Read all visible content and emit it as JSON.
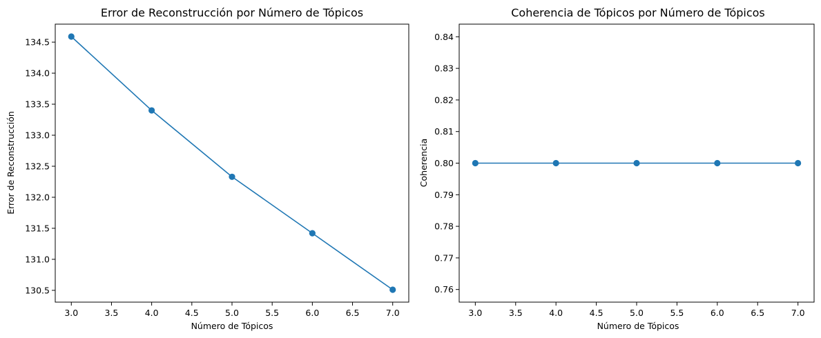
{
  "chart_data": [
    {
      "type": "line",
      "title": "Error de Reconstrucción por Número de Tópicos",
      "xlabel": "Número de Tópicos",
      "ylabel": "Error de Reconstrucción",
      "x": [
        3,
        4,
        5,
        6,
        7
      ],
      "series": [
        {
          "values": [
            134.59,
            133.4,
            132.33,
            131.42,
            130.51
          ],
          "color": "#1f77b4",
          "marker": "circle"
        }
      ],
      "xlim": [
        2.8,
        7.2
      ],
      "ylim": [
        130.31,
        134.79
      ],
      "xticks": [
        3.0,
        3.5,
        4.0,
        4.5,
        5.0,
        5.5,
        6.0,
        6.5,
        7.0
      ],
      "xtick_labels": [
        "3.0",
        "3.5",
        "4.0",
        "4.5",
        "5.0",
        "5.5",
        "6.0",
        "6.5",
        "7.0"
      ],
      "yticks": [
        130.5,
        131.0,
        131.5,
        132.0,
        132.5,
        133.0,
        133.5,
        134.0,
        134.5
      ],
      "ytick_labels": [
        "130.5",
        "131.0",
        "131.5",
        "132.0",
        "132.5",
        "133.0",
        "133.5",
        "134.0",
        "134.5"
      ],
      "grid": false
    },
    {
      "type": "line",
      "title": "Coherencia de Tópicos por Número de Tópicos",
      "xlabel": "Número de Tópicos",
      "ylabel": "Coherencia",
      "x": [
        3,
        4,
        5,
        6,
        7
      ],
      "series": [
        {
          "values": [
            0.8,
            0.8,
            0.8,
            0.8,
            0.8
          ],
          "color": "#1f77b4",
          "marker": "circle"
        }
      ],
      "xlim": [
        2.8,
        7.2
      ],
      "ylim": [
        0.756,
        0.844
      ],
      "xticks": [
        3.0,
        3.5,
        4.0,
        4.5,
        5.0,
        5.5,
        6.0,
        6.5,
        7.0
      ],
      "xtick_labels": [
        "3.0",
        "3.5",
        "4.0",
        "4.5",
        "5.0",
        "5.5",
        "6.0",
        "6.5",
        "7.0"
      ],
      "yticks": [
        0.76,
        0.77,
        0.78,
        0.79,
        0.8,
        0.81,
        0.82,
        0.83,
        0.84
      ],
      "ytick_labels": [
        "0.76",
        "0.77",
        "0.78",
        "0.79",
        "0.80",
        "0.81",
        "0.82",
        "0.83",
        "0.84"
      ],
      "grid": false
    }
  ]
}
